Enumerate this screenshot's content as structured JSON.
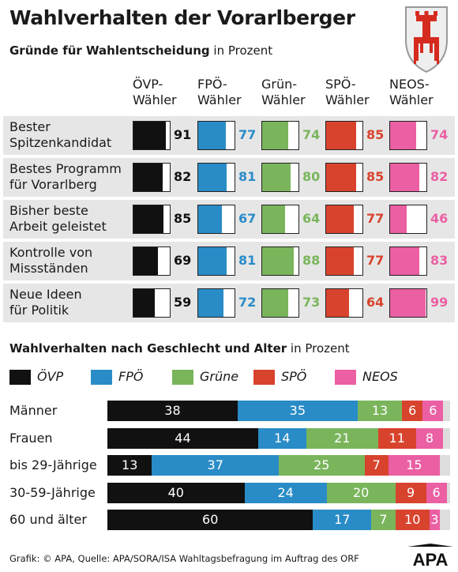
{
  "title": "Wahlverhalten der Vorarlberger",
  "section1": {
    "title_bold": "Gründe für Wahlentscheidung",
    "title_rest": " in Prozent",
    "columns": [
      {
        "line1": "ÖVP-",
        "line2": "Wähler",
        "color": "#111111"
      },
      {
        "line1": "FPÖ-",
        "line2": "Wähler",
        "color": "#2a8cc7"
      },
      {
        "line1": "Grün-",
        "line2": "Wähler",
        "color": "#7ab55c"
      },
      {
        "line1": "SPÖ-",
        "line2": "Wähler",
        "color": "#d8432d"
      },
      {
        "line1": "NEOS-",
        "line2": "Wähler",
        "color": "#eb5fa3"
      }
    ]
  },
  "section2": {
    "title_bold": "Wahlverhalten nach Geschlecht und Alter",
    "title_rest": " in Prozent",
    "legend": [
      {
        "label": "ÖVP",
        "color": "#111111"
      },
      {
        "label": "FPÖ",
        "color": "#2a8cc7"
      },
      {
        "label": "Grüne",
        "color": "#7ab55c"
      },
      {
        "label": "SPÖ",
        "color": "#d8432d"
      },
      {
        "label": "NEOS",
        "color": "#eb5fa3"
      }
    ]
  },
  "source": "Grafik: © APA, Quelle: APA/SORA/ISA Wahltagsbefragung im Auftrag des ORF",
  "logo": "APA",
  "chart_data": [
    {
      "type": "table",
      "columns": [
        "ÖVP-Wähler",
        "FPÖ-Wähler",
        "Grün-Wähler",
        "SPÖ-Wähler",
        "NEOS-Wähler"
      ],
      "rows": [
        {
          "line1": "Bester",
          "line2": "Spitzenkandidat",
          "values": [
            91,
            77,
            74,
            85,
            74
          ]
        },
        {
          "line1": "Bestes Programm",
          "line2": "für Vorarlberg",
          "values": [
            82,
            81,
            80,
            85,
            82
          ]
        },
        {
          "line1": "Bisher beste",
          "line2": "Arbeit geleistet",
          "values": [
            85,
            67,
            64,
            77,
            46
          ]
        },
        {
          "line1": "Kontrolle von",
          "line2": "Missständen",
          "values": [
            69,
            81,
            88,
            77,
            83
          ]
        },
        {
          "line1": "Neue Ideen",
          "line2": "für Politik",
          "values": [
            59,
            72,
            73,
            64,
            99
          ]
        }
      ]
    },
    {
      "type": "bar",
      "stacked": true,
      "orientation": "horizontal",
      "categories": [
        "Männer",
        "Frauen",
        "bis 29-Jährige",
        "30-59-Jährige",
        "60 und älter"
      ],
      "series": [
        {
          "name": "ÖVP",
          "values": [
            38,
            44,
            13,
            40,
            60
          ]
        },
        {
          "name": "FPÖ",
          "values": [
            35,
            14,
            37,
            24,
            17
          ]
        },
        {
          "name": "Grüne",
          "values": [
            13,
            21,
            25,
            20,
            7
          ]
        },
        {
          "name": "SPÖ",
          "values": [
            6,
            11,
            7,
            9,
            10
          ]
        },
        {
          "name": "NEOS",
          "values": [
            6,
            8,
            15,
            6,
            3
          ]
        }
      ],
      "xlim": [
        0,
        100
      ]
    }
  ]
}
